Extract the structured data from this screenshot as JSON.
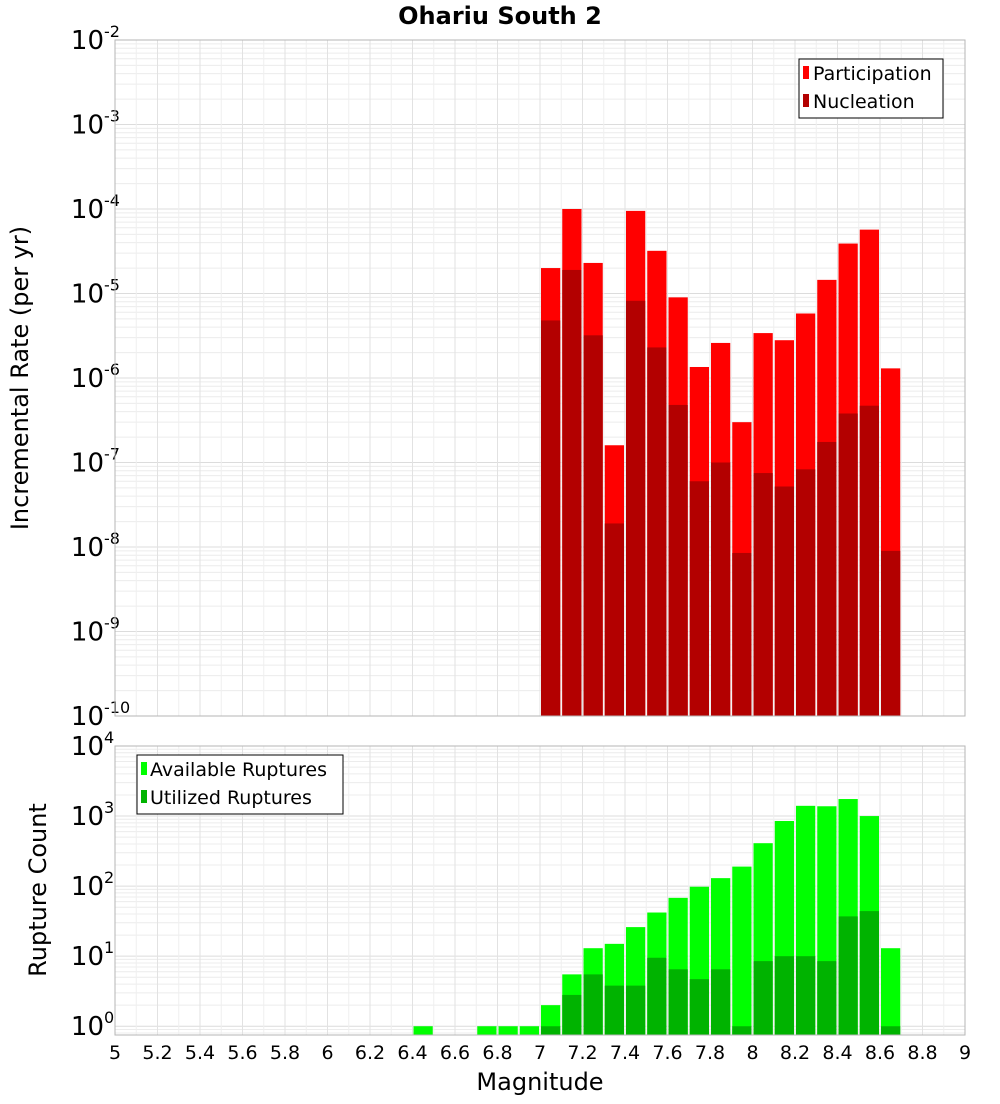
{
  "chart_data": [
    {
      "type": "bar",
      "title": "Ohariu South 2",
      "xlabel": "",
      "ylabel": "Incremental Rate (per yr)",
      "yscale": "log",
      "ylim": [
        1e-10,
        0.01
      ],
      "xlim": [
        5,
        9
      ],
      "grid": true,
      "legend_position": "top-right",
      "y_ticks": [
        {
          "base": "10",
          "exp": "-10",
          "value": 1e-10
        },
        {
          "base": "10",
          "exp": "-9",
          "value": 1e-09
        },
        {
          "base": "10",
          "exp": "-8",
          "value": 1e-08
        },
        {
          "base": "10",
          "exp": "-7",
          "value": 1e-07
        },
        {
          "base": "10",
          "exp": "-6",
          "value": 1e-06
        },
        {
          "base": "10",
          "exp": "-5",
          "value": 1e-05
        },
        {
          "base": "10",
          "exp": "-4",
          "value": 0.0001
        },
        {
          "base": "10",
          "exp": "-3",
          "value": 0.001
        },
        {
          "base": "10",
          "exp": "-2",
          "value": 0.01
        }
      ],
      "bin_width": 0.1,
      "x": [
        7.05,
        7.15,
        7.25,
        7.35,
        7.45,
        7.55,
        7.65,
        7.75,
        7.85,
        7.95,
        8.05,
        8.15,
        8.25,
        8.35,
        8.45,
        8.55,
        8.65
      ],
      "series": [
        {
          "name": "Participation",
          "color": "#ff0000",
          "values": [
            2e-05,
            0.0001,
            2.3e-05,
            1.6e-07,
            9.5e-05,
            3.2e-05,
            9e-06,
            1.35e-06,
            2.6e-06,
            3e-07,
            3.4e-06,
            2.8e-06,
            5.8e-06,
            1.45e-05,
            3.9e-05,
            5.7e-05,
            1.3e-06
          ]
        },
        {
          "name": "Nucleation",
          "color": "#b30000",
          "values": [
            4.8e-06,
            1.9e-05,
            3.2e-06,
            1.9e-08,
            8.2e-06,
            2.3e-06,
            4.8e-07,
            6e-08,
            1e-07,
            8.5e-09,
            7.5e-08,
            5.2e-08,
            8.3e-08,
            1.75e-07,
            3.8e-07,
            4.7e-07,
            9e-09
          ]
        }
      ]
    },
    {
      "type": "bar",
      "title": "",
      "xlabel": "Magnitude",
      "ylabel": "Rupture Count",
      "yscale": "log",
      "ylim": [
        0.75,
        10000
      ],
      "xlim": [
        5,
        9
      ],
      "grid": true,
      "legend_position": "top-left",
      "y_ticks": [
        {
          "base": "10",
          "exp": "0",
          "value": 1
        },
        {
          "base": "10",
          "exp": "1",
          "value": 10
        },
        {
          "base": "10",
          "exp": "2",
          "value": 100
        },
        {
          "base": "10",
          "exp": "3",
          "value": 1000
        },
        {
          "base": "10",
          "exp": "4",
          "value": 10000
        }
      ],
      "x_ticks": [
        "5",
        "5.2",
        "5.4",
        "5.6",
        "5.8",
        "6",
        "6.2",
        "6.4",
        "6.6",
        "6.8",
        "7",
        "7.2",
        "7.4",
        "7.6",
        "7.8",
        "8",
        "8.2",
        "8.4",
        "8.6",
        "8.8",
        "9"
      ],
      "bin_width": 0.1,
      "x": [
        6.45,
        6.75,
        6.85,
        6.95,
        7.05,
        7.15,
        7.25,
        7.35,
        7.45,
        7.55,
        7.65,
        7.75,
        7.85,
        7.95,
        8.05,
        8.15,
        8.25,
        8.35,
        8.45,
        8.55,
        8.65
      ],
      "series": [
        {
          "name": "Available Ruptures",
          "color": "#00ff00",
          "values": [
            1,
            1,
            1,
            1,
            2,
            5.5,
            13,
            15,
            26,
            42,
            68,
            98,
            130,
            190,
            410,
            850,
            1400,
            1380,
            1750,
            1000,
            13
          ]
        },
        {
          "name": "Utilized Ruptures",
          "color": "#00b300",
          "values": [
            0,
            0,
            0,
            0,
            1,
            2.8,
            5.5,
            3.8,
            3.8,
            9.5,
            6.5,
            4.7,
            6.5,
            1,
            8.5,
            10,
            10,
            8.5,
            37,
            44,
            1
          ]
        }
      ]
    }
  ]
}
